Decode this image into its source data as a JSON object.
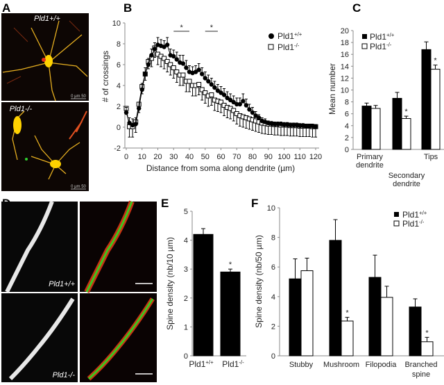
{
  "panels": {
    "A": {
      "label": "A",
      "image_labels": [
        "Pld1+/+",
        "Pld1-/-"
      ],
      "scale_text": "0  μm  50"
    },
    "B": {
      "label": "B"
    },
    "C": {
      "label": "C"
    },
    "D": {
      "label": "D",
      "image_labels": [
        "Pld1+/+",
        "Pld1-/-"
      ]
    },
    "E": {
      "label": "E"
    },
    "F": {
      "label": "F"
    }
  },
  "colors": {
    "wt": "#000000",
    "ko": "#ffffff",
    "axis": "#888888",
    "neuron": "#ffd200",
    "dendrite_red": "#c83214",
    "dendrite_green": "#3cc81e"
  },
  "chart_data": [
    {
      "id": "B",
      "type": "line",
      "xlabel": "Distance from soma along dendrite (µm)",
      "ylabel": "# of crossings",
      "xlim": [
        0,
        120
      ],
      "ylim": [
        -2,
        10
      ],
      "xticks": [
        0,
        10,
        20,
        30,
        40,
        50,
        60,
        70,
        80,
        90,
        100,
        110,
        120
      ],
      "yticks": [
        -2,
        0,
        2,
        4,
        6,
        8,
        10
      ],
      "legend": "top-right",
      "grid": false,
      "x": [
        0,
        2,
        4,
        6,
        8,
        10,
        12,
        14,
        16,
        18,
        20,
        22,
        24,
        26,
        28,
        30,
        32,
        34,
        36,
        38,
        40,
        42,
        44,
        46,
        48,
        50,
        52,
        54,
        56,
        58,
        60,
        62,
        64,
        66,
        68,
        70,
        72,
        74,
        76,
        78,
        80,
        82,
        84,
        86,
        88,
        90,
        92,
        94,
        96,
        98,
        100,
        102,
        104,
        106,
        108,
        110,
        112,
        114,
        116,
        118,
        120
      ],
      "series": [
        {
          "name": "Pld1+/+",
          "marker": "filled-circle",
          "values": [
            1.4,
            0.4,
            0.2,
            0.3,
            1.8,
            3.6,
            5.1,
            6.0,
            6.9,
            7.5,
            7.9,
            7.8,
            7.7,
            7.9,
            6.9,
            6.8,
            6.5,
            6.2,
            6.1,
            5.7,
            5.3,
            5.2,
            5.3,
            5.5,
            5.1,
            4.7,
            4.4,
            4.1,
            3.8,
            3.5,
            3.3,
            3.1,
            2.8,
            2.6,
            2.4,
            2.2,
            2.2,
            2.5,
            2.1,
            1.7,
            1.4,
            1.1,
            0.9,
            0.6,
            0.5,
            0.4,
            0.35,
            0.3,
            0.3,
            0.3,
            0.25,
            0.25,
            0.2,
            0.2,
            0.2,
            0.15,
            0.15,
            0.1,
            0.1,
            0.1,
            0.05
          ],
          "error": [
            0.5,
            0.5,
            0.6,
            0.6,
            0.6,
            0.6,
            0.6,
            0.6,
            0.6,
            0.6,
            0.7,
            0.6,
            0.6,
            0.7,
            0.6,
            0.6,
            0.7,
            0.7,
            0.8,
            0.7,
            0.6,
            0.6,
            0.6,
            0.6,
            0.6,
            0.6,
            0.6,
            0.6,
            0.6,
            0.6,
            0.6,
            0.6,
            0.6,
            0.6,
            0.6,
            0.6,
            0.6,
            0.7,
            0.6,
            0.5,
            0.5,
            0.4,
            0.3,
            0.3,
            0.3,
            0.2,
            0.2,
            0.2,
            0.2,
            0.2,
            0.2,
            0.2,
            0.2,
            0.2,
            0.2,
            0.2,
            0.2,
            0.2,
            0.2,
            0.2,
            0.2
          ]
        },
        {
          "name": "Pld1-/-",
          "marker": "open-square",
          "values": [
            1.8,
            0.05,
            0.05,
            0.5,
            2.2,
            3.9,
            5.1,
            6.3,
            6.6,
            7.6,
            7.0,
            6.8,
            6.6,
            6.3,
            6.0,
            5.7,
            5.3,
            5.0,
            5.0,
            4.4,
            4.4,
            4.0,
            4.0,
            4.1,
            3.6,
            3.3,
            3.0,
            3.1,
            2.6,
            2.5,
            2.4,
            2.1,
            1.9,
            1.8,
            1.6,
            1.3,
            1.1,
            1.0,
            0.9,
            0.8,
            0.7,
            0.6,
            0.5,
            0.4,
            0.35,
            0.3,
            0.3,
            0.25,
            0.25,
            0.2,
            0.2,
            0.2,
            0.15,
            0.15,
            0.15,
            0.1,
            0.1,
            0.1,
            0.1,
            0.05,
            0.05
          ],
          "error": [
            0.5,
            1.0,
            1.0,
            1.0,
            0.8,
            0.7,
            0.6,
            0.7,
            0.8,
            0.9,
            1.0,
            1.0,
            1.0,
            1.0,
            1.0,
            1.0,
            1.0,
            1.0,
            1.0,
            1.0,
            1.0,
            1.0,
            1.0,
            1.0,
            1.0,
            1.0,
            1.0,
            1.0,
            1.0,
            1.0,
            1.0,
            1.0,
            1.0,
            1.0,
            1.0,
            1.0,
            1.0,
            1.0,
            1.0,
            1.0,
            1.0,
            1.0,
            1.0,
            1.0,
            1.0,
            1.0,
            1.0,
            1.0,
            1.0,
            1.0,
            1.0,
            1.0,
            1.0,
            1.0,
            1.0,
            1.0,
            1.0,
            1.0,
            1.0,
            1.0,
            1.0
          ]
        }
      ],
      "significance": [
        {
          "from": 30,
          "to": 40,
          "label": "*"
        },
        {
          "from": 50,
          "to": 58,
          "label": "*"
        }
      ]
    },
    {
      "id": "C",
      "type": "bar",
      "ylabel": "Mean number",
      "ylim": [
        0,
        20
      ],
      "yticks": [
        0,
        2,
        4,
        6,
        8,
        10,
        12,
        14,
        16,
        18,
        20
      ],
      "categories": [
        "Primary dendrite",
        "Secondary dendrite",
        "Tips"
      ],
      "category_lines": [
        [
          "Primary",
          "dendrite"
        ],
        [
          "Secondary",
          "dendrite"
        ],
        [
          "Tips"
        ]
      ],
      "legend": "top-left",
      "series": [
        {
          "name": "Pld1+/+",
          "values": [
            7.3,
            8.6,
            16.8
          ],
          "error": [
            0.5,
            1.0,
            1.3
          ]
        },
        {
          "name": "Pld1-/-",
          "values": [
            6.9,
            5.2,
            13.5
          ],
          "error": [
            0.5,
            0.4,
            0.7
          ],
          "significant": [
            false,
            true,
            true
          ]
        }
      ],
      "sig_label": "*"
    },
    {
      "id": "E",
      "type": "bar",
      "ylabel": "Spine density (nb/10 µm)",
      "ylim": [
        0,
        5
      ],
      "yticks": [
        0,
        1,
        2,
        3,
        4,
        5
      ],
      "categories": [
        "Pld1+/+",
        "Pld1-/-"
      ],
      "values": [
        4.2,
        2.9
      ],
      "error": [
        0.2,
        0.1
      ],
      "significant": [
        false,
        true
      ],
      "sig_label": "*"
    },
    {
      "id": "F",
      "type": "bar",
      "ylabel": "Spine density (nb/50 µm)",
      "ylim": [
        0,
        10
      ],
      "yticks": [
        0,
        2,
        4,
        6,
        8,
        10
      ],
      "categories": [
        "Stubby",
        "Mushroom",
        "Filopodia",
        "Branched spine"
      ],
      "category_lines": [
        [
          "Stubby"
        ],
        [
          "Mushroom"
        ],
        [
          "Filopodia"
        ],
        [
          "Branched",
          "spine"
        ]
      ],
      "legend": "top-right",
      "series": [
        {
          "name": "Pld1+/+",
          "values": [
            5.2,
            7.8,
            5.3,
            3.3
          ],
          "error": [
            1.35,
            1.4,
            1.5,
            0.55
          ]
        },
        {
          "name": "Pld1-/-",
          "values": [
            5.75,
            2.35,
            3.95,
            0.95
          ],
          "error": [
            0.85,
            0.25,
            0.75,
            0.3
          ],
          "significant": [
            false,
            true,
            false,
            true
          ]
        }
      ],
      "sig_label": "*"
    }
  ]
}
